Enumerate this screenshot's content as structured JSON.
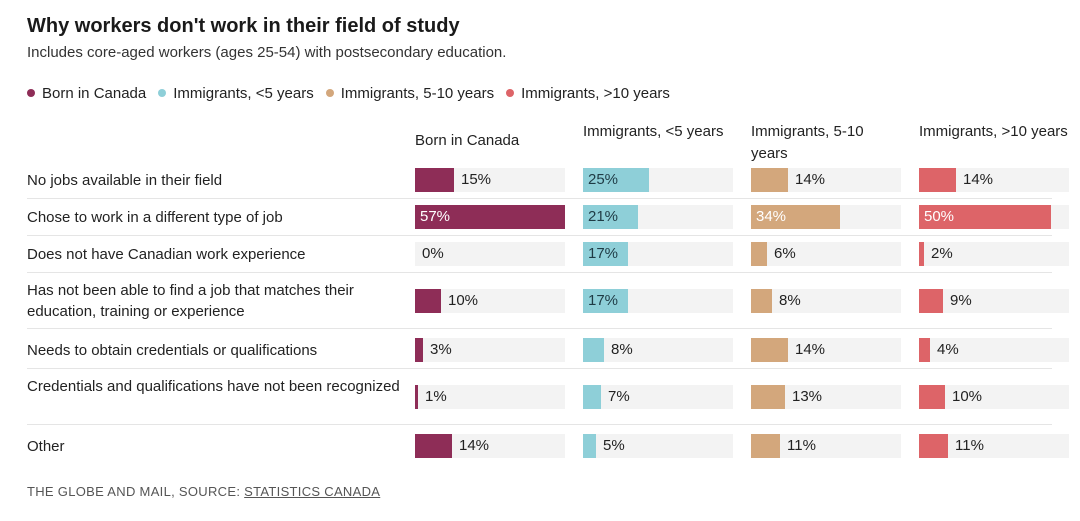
{
  "title": "Why workers don't work in their field of study",
  "subtitle": "Includes core-aged workers (ages 25-54) with postsecondary education.",
  "footer": {
    "credit": "THE GLOBE AND MAIL, SOURCE: ",
    "source": "STATISTICS CANADA"
  },
  "chart_data": {
    "type": "bar",
    "orientation": "horizontal",
    "value_suffix": "%",
    "xlim": [
      0,
      57
    ],
    "categories": [
      "No jobs available in their field",
      "Chose to work in a different type of job",
      "Does not have Canadian work experience",
      "Has not been able to find a job that matches their education, training or experience",
      "Needs to obtain credentials or qualifications",
      "Credentials and qualifications have not been recognized",
      "Other"
    ],
    "series": [
      {
        "name": "Born in Canada",
        "color": "#8e2d57",
        "values": [
          15,
          57,
          0,
          10,
          3,
          1,
          14
        ]
      },
      {
        "name": "Immigrants, <5 years",
        "color": "#8ecfd8",
        "values": [
          25,
          21,
          17,
          17,
          8,
          7,
          5
        ]
      },
      {
        "name": "Immigrants, 5-10 years",
        "color": "#d3a77c",
        "values": [
          14,
          34,
          6,
          8,
          14,
          13,
          11
        ]
      },
      {
        "name": "Immigrants, >10 years",
        "color": "#dd6468",
        "values": [
          14,
          50,
          2,
          9,
          4,
          10,
          11
        ]
      }
    ],
    "legend_position": "top-left",
    "grid": false
  }
}
